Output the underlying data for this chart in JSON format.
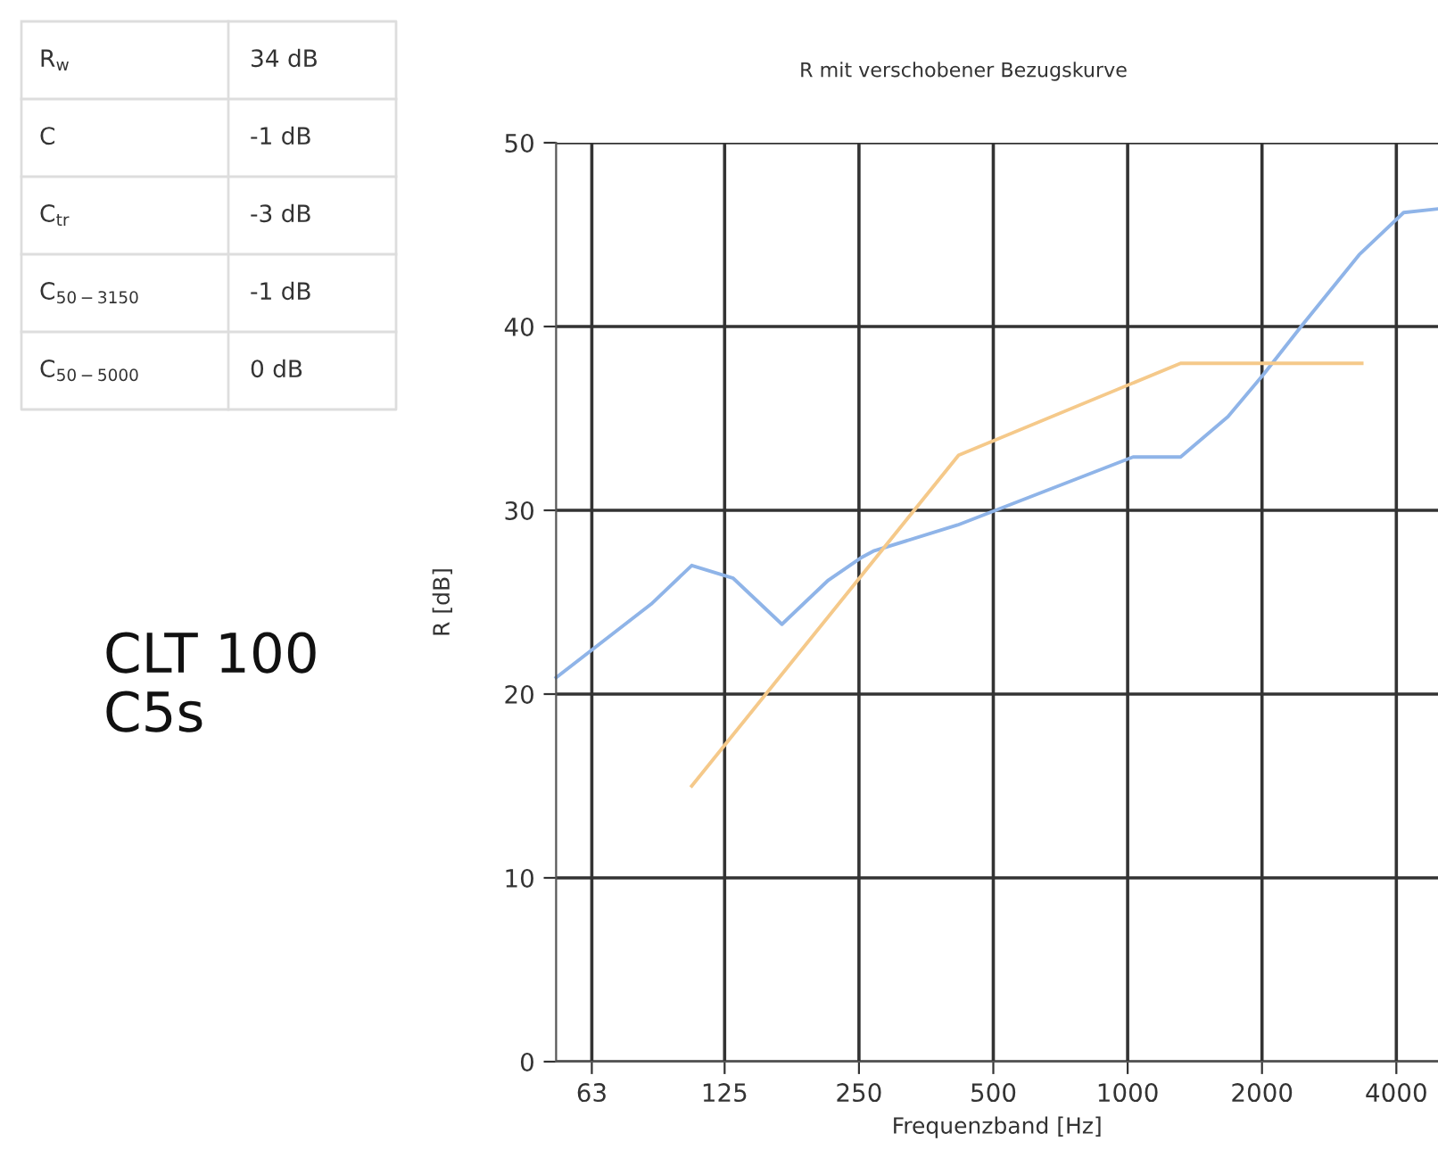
{
  "chart_data": {
    "type": "line",
    "title": "R mit verschobener Bezugskurve",
    "xlabel": "Frequenzband [Hz]",
    "ylabel": "R [dB]",
    "log": "x",
    "xlim": [
      52.4,
      4959
    ],
    "xticks": [
      63,
      125,
      250,
      500,
      1000,
      2000,
      4000
    ],
    "ylim": [
      0,
      50
    ],
    "yticks": [
      0,
      10,
      20,
      30,
      40,
      50
    ],
    "grid": true,
    "marker": "none",
    "line_style": "solid",
    "series": [
      {
        "color": "#8fb4e8",
        "x": [
          52.4,
          85.6,
          105.5,
          130.7,
          168,
          213.5,
          252,
          270.5,
          416,
          1028,
          1314,
          1678,
          2017,
          2465,
          3300,
          4153,
          4959
        ],
        "values": [
          20.9,
          24.9,
          27.0,
          26.3,
          23.8,
          26.2,
          27.4,
          27.8,
          29.2,
          32.9,
          32.9,
          35.1,
          37.4,
          40.1,
          43.9,
          46.2,
          46.4
        ]
      },
      {
        "color": "#f5c98a",
        "x": [
          105.5,
          418,
          1314,
          3347
        ],
        "values": [
          15.0,
          33.0,
          38.0,
          38.0
        ]
      }
    ],
    "annotations": [
      "R$_{w}$",
      "34 dB",
      "C",
      "-1 dB",
      "C$_{tr}$",
      "-3 dB",
      "C$_{50−3150}$",
      "-1 dB",
      "C$_{50−5000}$",
      "0 dB",
      "CLT 100\nC5s"
    ]
  }
}
